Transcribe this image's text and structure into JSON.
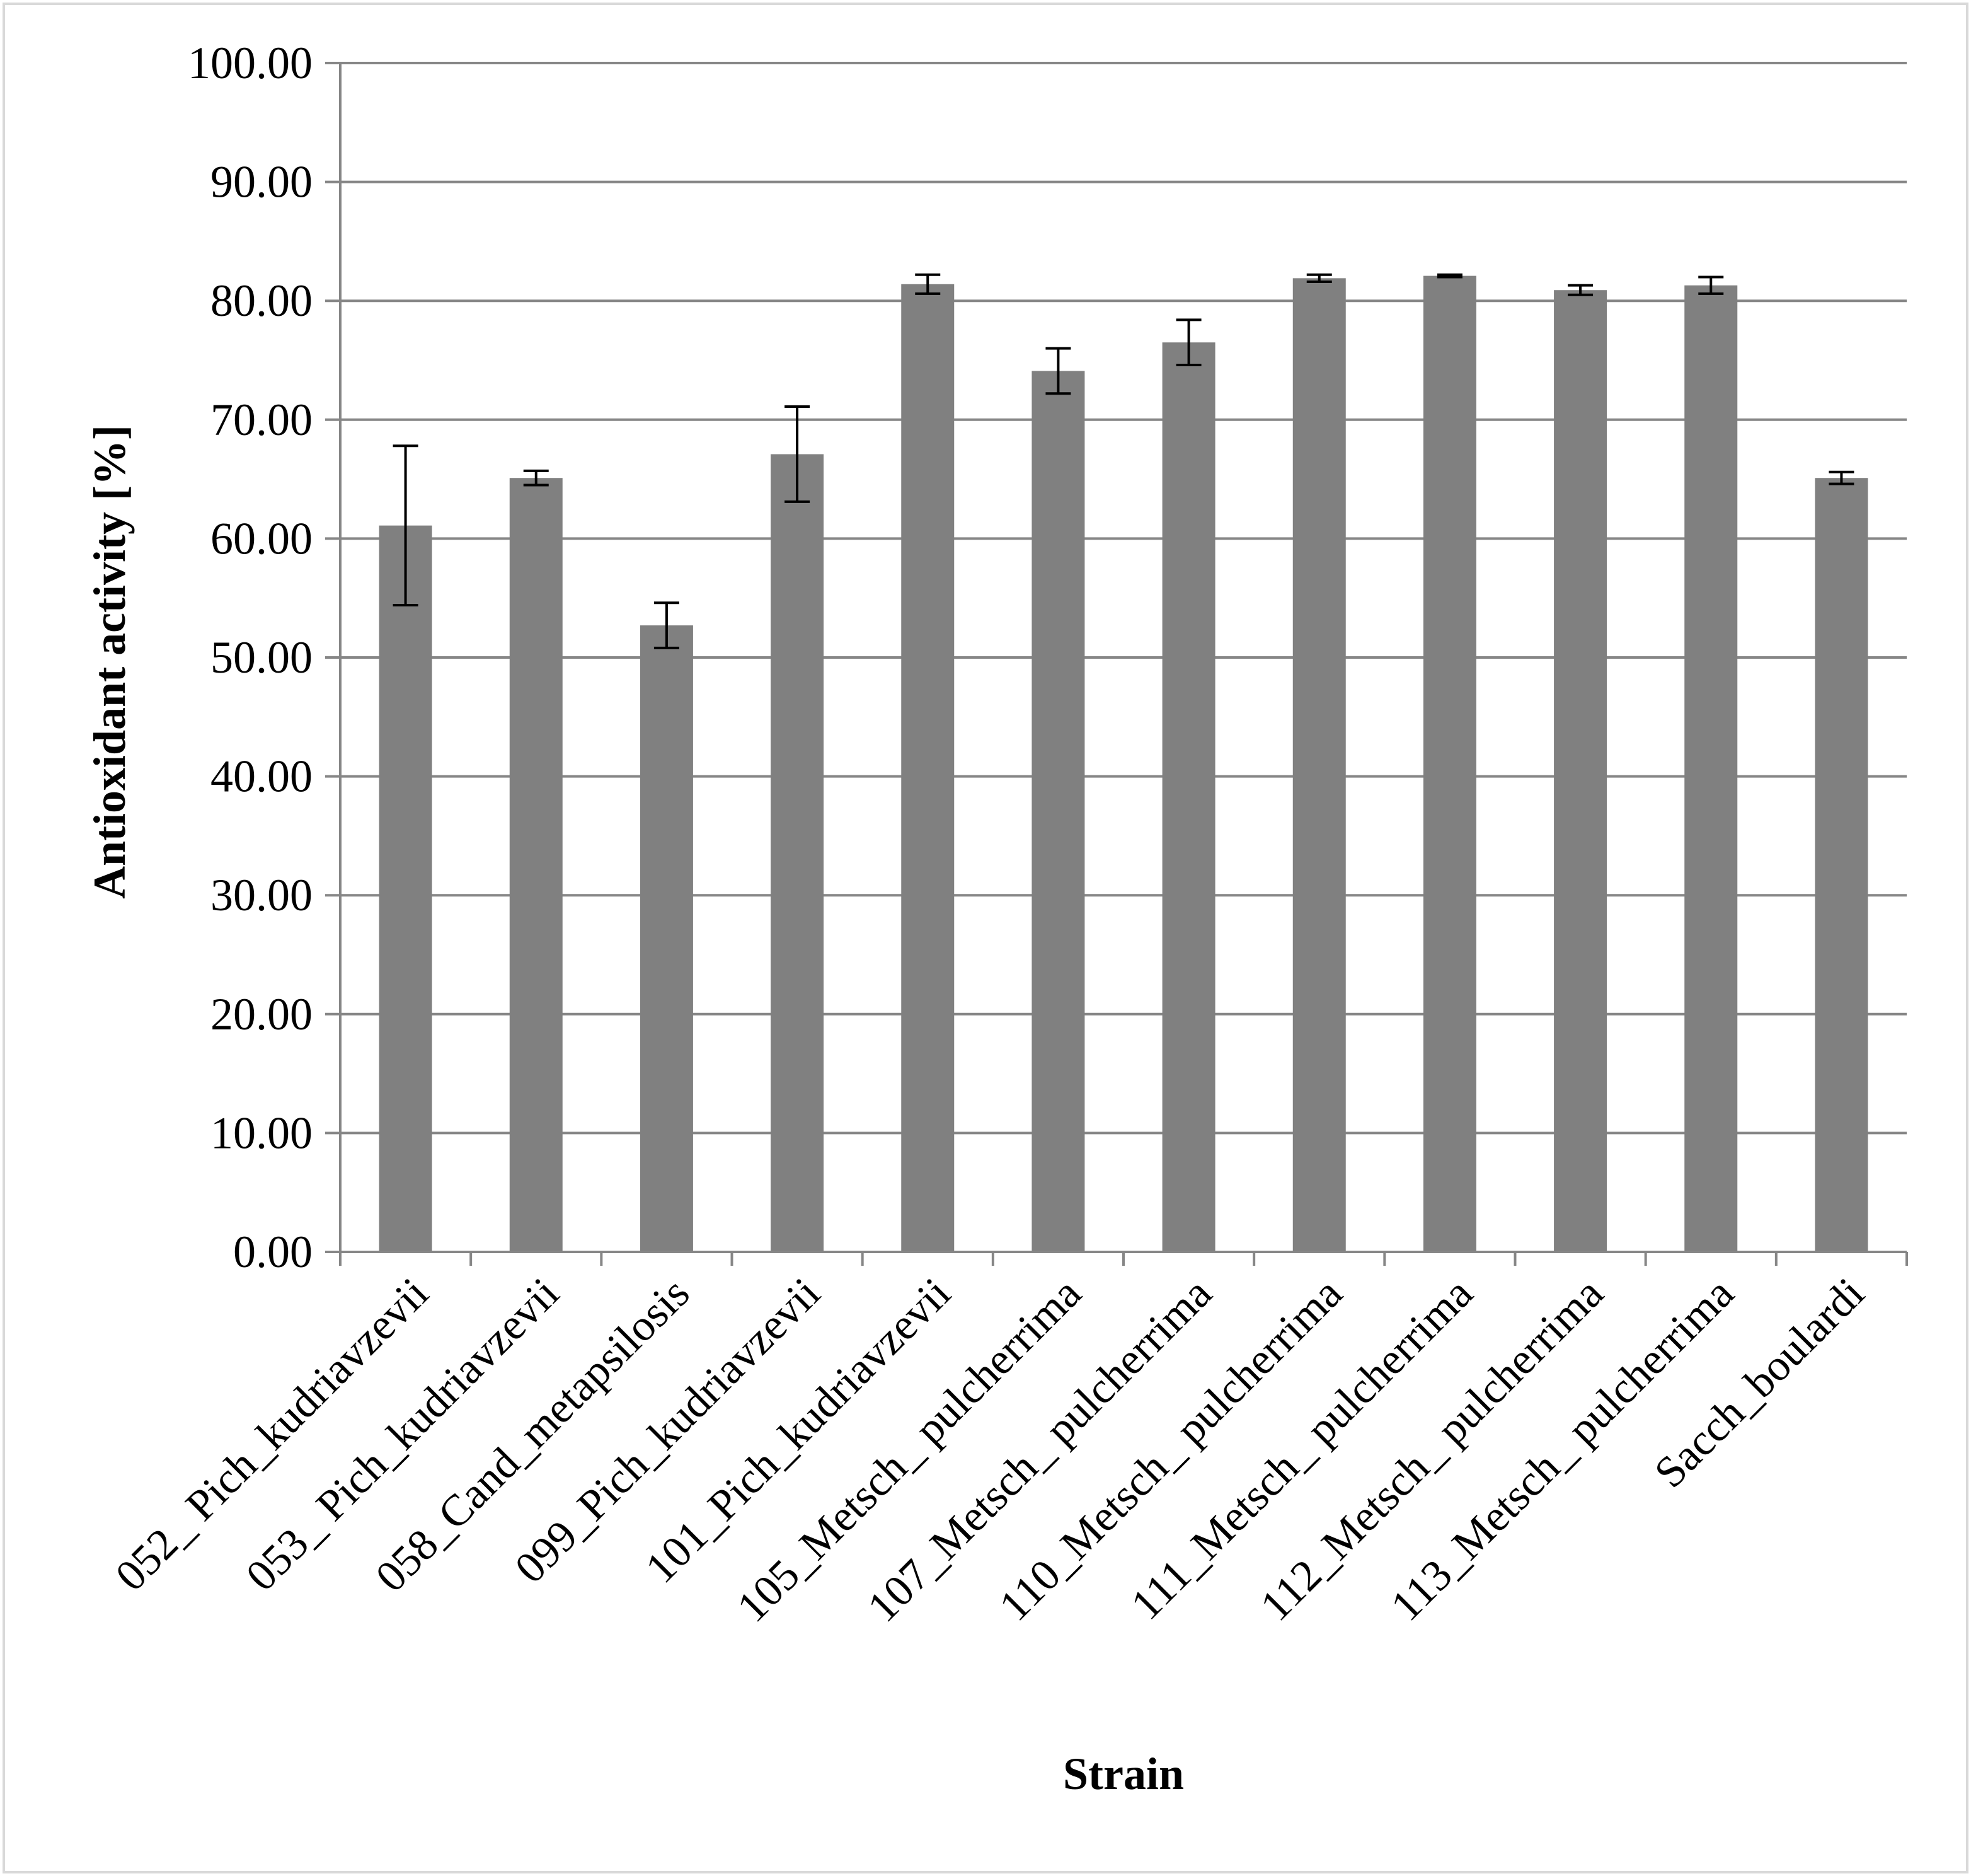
{
  "chart_data": {
    "type": "bar",
    "title": "",
    "xlabel": "Strain",
    "ylabel": "Antioxidant activity [%]",
    "ylim": [
      0,
      100
    ],
    "yticks": [
      "0.00",
      "10.00",
      "20.00",
      "30.00",
      "40.00",
      "50.00",
      "60.00",
      "70.00",
      "80.00",
      "90.00",
      "100.00"
    ],
    "grid": true,
    "legend": "none",
    "categories": [
      "052_ Pich_kudriavzevii",
      "053_ Pich_kudriavzevii",
      "058_Cand_metapsilosis",
      "099_Pich_kudriavzevii",
      "101_Pich_kudriavzevii",
      "105_Metsch_ pulcherrima",
      "107_Metsch_ pulcherrima",
      "110_Metsch_ pulcherrima",
      "111_Metsch_ pulcherrima",
      "112_Metsch_ pulcherrima",
      "113_Metsch_ pulcherrima",
      "Sacch_boulardi"
    ],
    "series": [
      {
        "values": [
          61.1,
          65.1,
          52.7,
          67.1,
          81.4,
          74.1,
          76.5,
          81.9,
          82.1,
          80.9,
          81.3,
          65.1
        ],
        "error": [
          6.7,
          0.6,
          1.9,
          4.0,
          0.8,
          1.9,
          1.9,
          0.3,
          0.1,
          0.4,
          0.7,
          0.5
        ]
      }
    ],
    "colors": {
      "bar": "#808080",
      "grid": "#868686",
      "axis": "#868686",
      "error": "#000000",
      "frame": "#d9d9d9"
    }
  }
}
